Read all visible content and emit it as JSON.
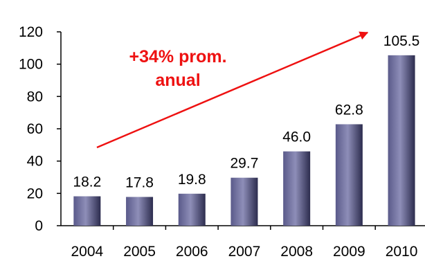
{
  "chart_data": {
    "type": "bar",
    "title": "",
    "xlabel": "",
    "ylabel": "",
    "categories": [
      "2004",
      "2005",
      "2006",
      "2007",
      "2008",
      "2009",
      "2010"
    ],
    "values": [
      18.2,
      17.8,
      19.8,
      29.7,
      46.0,
      62.8,
      105.5
    ],
    "data_labels": [
      "18.2",
      "17.8",
      "19.8",
      "29.7",
      "46.0",
      "62.8",
      "105.5"
    ],
    "ylim": [
      0,
      120
    ],
    "yticks": [
      "0",
      "20",
      "40",
      "60",
      "80",
      "100",
      "120"
    ],
    "grid": false,
    "legend": "none",
    "annotation": {
      "line1": "+34% prom.",
      "line2": "anual",
      "color": "#ee1111"
    },
    "colors": {
      "bar_dark": "#2c2c4e",
      "bar_mid": "#5a5a8a",
      "bar_light": "#8e8eb8",
      "axis": "#000000",
      "arrow": "#ee1111"
    }
  }
}
